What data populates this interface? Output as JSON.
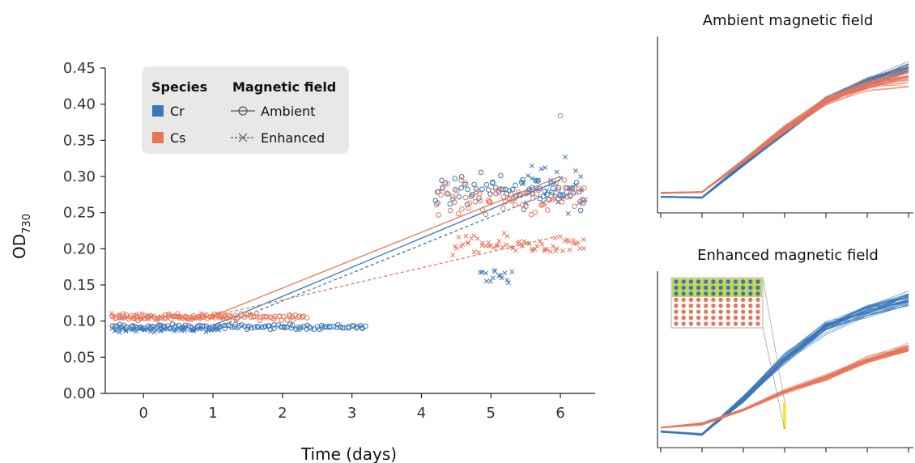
{
  "colors": {
    "cr": "#3a78b8",
    "cs": "#e8775a",
    "axis": "#222222",
    "legend_bg": "#e8e8e6",
    "inset_bg": "#c8d654"
  },
  "chart_data": [
    {
      "type": "scatter",
      "id": "main",
      "xlabel": "Time (days)",
      "ylabel_main": "OD",
      "ylabel_sub": "730",
      "xlim": [
        -0.55,
        6.5
      ],
      "ylim": [
        0,
        0.45
      ],
      "xticks": [
        "0",
        "1",
        "2",
        "3",
        "4",
        "5",
        "6"
      ],
      "yticks": [
        "0.00",
        "0.05",
        "0.10",
        "0.15",
        "0.20",
        "0.25",
        "0.30",
        "0.35",
        "0.40",
        "0.45"
      ],
      "legend": {
        "placement": "top-left",
        "species_title": "Species",
        "field_title": "Magnetic field",
        "species": [
          "Cr",
          "Cs"
        ],
        "fields": [
          "Ambient",
          "Enhanced"
        ]
      },
      "series": [
        {
          "species": "Cr",
          "field": "Ambient",
          "marker": "circle",
          "clusters": [
            {
              "x": [
                -0.45,
                3.2
              ],
              "y": 0.092,
              "spread": 0.003
            },
            {
              "x": [
                4.2,
                6.35
              ],
              "y": 0.28,
              "spread": 0.02
            }
          ],
          "trend": {
            "x": [
              1.0,
              6.0
            ],
            "y": [
              0.094,
              0.295
            ]
          }
        },
        {
          "species": "Cr",
          "field": "Enhanced",
          "marker": "x",
          "clusters": [
            {
              "x": [
                -0.45,
                1.1
              ],
              "y": 0.088,
              "spread": 0.003
            },
            {
              "x": [
                4.85,
                5.3
              ],
              "y": 0.163,
              "spread": 0.01
            },
            {
              "x": [
                5.45,
                6.35
              ],
              "y": 0.29,
              "spread": 0.03
            }
          ],
          "trend": {
            "x": [
              1.0,
              6.0
            ],
            "y": [
              0.089,
              0.283
            ]
          }
        },
        {
          "species": "Cs",
          "field": "Ambient",
          "marker": "circle",
          "clusters": [
            {
              "x": [
                -0.45,
                2.35
              ],
              "y": 0.106,
              "spread": 0.004
            },
            {
              "x": [
                4.2,
                6.35
              ],
              "y": 0.27,
              "spread": 0.02
            }
          ],
          "outliers": [
            {
              "x": 6.0,
              "y": 0.384
            }
          ],
          "trend": {
            "x": [
              1.0,
              6.0
            ],
            "y": [
              0.107,
              0.3
            ]
          }
        },
        {
          "species": "Cs",
          "field": "Enhanced",
          "marker": "x",
          "clusters": [
            {
              "x": [
                -0.45,
                1.2
              ],
              "y": 0.106,
              "spread": 0.004
            },
            {
              "x": [
                4.45,
                6.35
              ],
              "y": 0.205,
              "spread": 0.012
            }
          ],
          "trend": {
            "x": [
              1.0,
              6.0
            ],
            "y": [
              0.107,
              0.218
            ]
          }
        }
      ]
    },
    {
      "type": "line",
      "id": "ambient",
      "title": "Ambient magnetic field",
      "x": [
        0,
        1,
        2,
        3,
        4,
        5,
        6
      ],
      "series": [
        {
          "species": "Cr",
          "lines": 36,
          "y": [
            0.02,
            0.018,
            0.1,
            0.18,
            0.26,
            0.305,
            0.34
          ],
          "spread": [
            0.002,
            0.002,
            0.005,
            0.008,
            0.01,
            0.012,
            0.012
          ]
        },
        {
          "species": "Cs",
          "lines": 36,
          "y": [
            0.03,
            0.032,
            0.11,
            0.19,
            0.26,
            0.3,
            0.325
          ],
          "spread": [
            0.002,
            0.002,
            0.006,
            0.009,
            0.012,
            0.016,
            0.03
          ]
        }
      ],
      "ylim": [
        -0.02,
        0.42
      ]
    },
    {
      "type": "line",
      "id": "enhanced",
      "title": "Enhanced magnetic field",
      "x": [
        0,
        1,
        2,
        3,
        4,
        5,
        6
      ],
      "series": [
        {
          "species": "Cr",
          "lines": 36,
          "y": [
            0.02,
            0.012,
            0.1,
            0.2,
            0.28,
            0.32,
            0.35
          ],
          "spread": [
            0.003,
            0.003,
            0.01,
            0.015,
            0.02,
            0.02,
            0.025
          ]
        },
        {
          "species": "Cs",
          "lines": 36,
          "y": [
            0.03,
            0.04,
            0.075,
            0.12,
            0.155,
            0.2,
            0.23
          ],
          "spread": [
            0.002,
            0.003,
            0.004,
            0.006,
            0.008,
            0.01,
            0.012
          ]
        }
      ],
      "ylim": [
        -0.02,
        0.42
      ],
      "inset": {
        "rows": 8,
        "cols": 12,
        "row_species": [
          "Cr",
          "Cr",
          "Cr",
          "Cs",
          "Cs",
          "Cs",
          "Cs",
          "Cs"
        ]
      }
    }
  ]
}
